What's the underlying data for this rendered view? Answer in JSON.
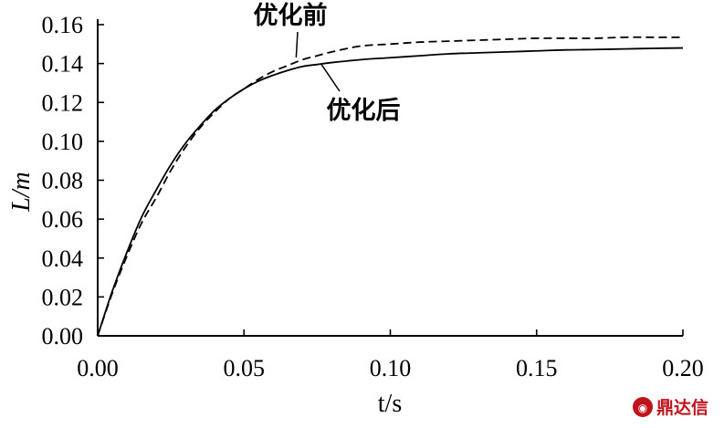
{
  "chart_data": {
    "type": "line",
    "title": "",
    "xlabel": "t/s",
    "ylabel": "L/m",
    "xlim": [
      0.0,
      0.2
    ],
    "ylim": [
      0.0,
      0.16
    ],
    "xticks": [
      "0.00",
      "0.05",
      "0.10",
      "0.15",
      "0.20"
    ],
    "yticks": [
      "0.00",
      "0.02",
      "0.04",
      "0.06",
      "0.08",
      "0.10",
      "0.12",
      "0.14",
      "0.16"
    ],
    "grid": false,
    "legend": "none",
    "series": [
      {
        "name": "优化前",
        "style": "dashed",
        "color": "#000000",
        "x": [
          0.0,
          0.005,
          0.01,
          0.015,
          0.02,
          0.025,
          0.03,
          0.035,
          0.04,
          0.045,
          0.05,
          0.055,
          0.06,
          0.065,
          0.07,
          0.075,
          0.08,
          0.09,
          0.1,
          0.11,
          0.12,
          0.13,
          0.14,
          0.15,
          0.16,
          0.17,
          0.18,
          0.19,
          0.2
        ],
        "y": [
          0.0,
          0.022,
          0.041,
          0.058,
          0.071,
          0.085,
          0.097,
          0.107,
          0.115,
          0.122,
          0.127,
          0.132,
          0.136,
          0.139,
          0.142,
          0.144,
          0.146,
          0.149,
          0.15,
          0.151,
          0.1515,
          0.152,
          0.1525,
          0.153,
          0.153,
          0.153,
          0.1535,
          0.1535,
          0.1535
        ]
      },
      {
        "name": "优化后",
        "style": "solid",
        "color": "#000000",
        "x": [
          0.0,
          0.005,
          0.01,
          0.015,
          0.02,
          0.025,
          0.03,
          0.035,
          0.04,
          0.045,
          0.05,
          0.055,
          0.06,
          0.065,
          0.07,
          0.075,
          0.08,
          0.09,
          0.1,
          0.11,
          0.12,
          0.13,
          0.14,
          0.15,
          0.16,
          0.17,
          0.18,
          0.19,
          0.2
        ],
        "y": [
          0.0,
          0.023,
          0.043,
          0.061,
          0.075,
          0.088,
          0.099,
          0.108,
          0.116,
          0.122,
          0.127,
          0.131,
          0.134,
          0.1365,
          0.1385,
          0.1395,
          0.1405,
          0.142,
          0.143,
          0.144,
          0.145,
          0.1455,
          0.146,
          0.1465,
          0.147,
          0.1472,
          0.1475,
          0.1478,
          0.148
        ]
      }
    ],
    "annotations": [
      {
        "text": "优化前",
        "points_to": {
          "x": 0.075,
          "y": 0.145
        }
      },
      {
        "text": "优化后",
        "points_to": {
          "x": 0.08,
          "y": 0.1405
        }
      }
    ]
  },
  "watermark": {
    "text": "鼎达信",
    "color": "#c0141c"
  }
}
